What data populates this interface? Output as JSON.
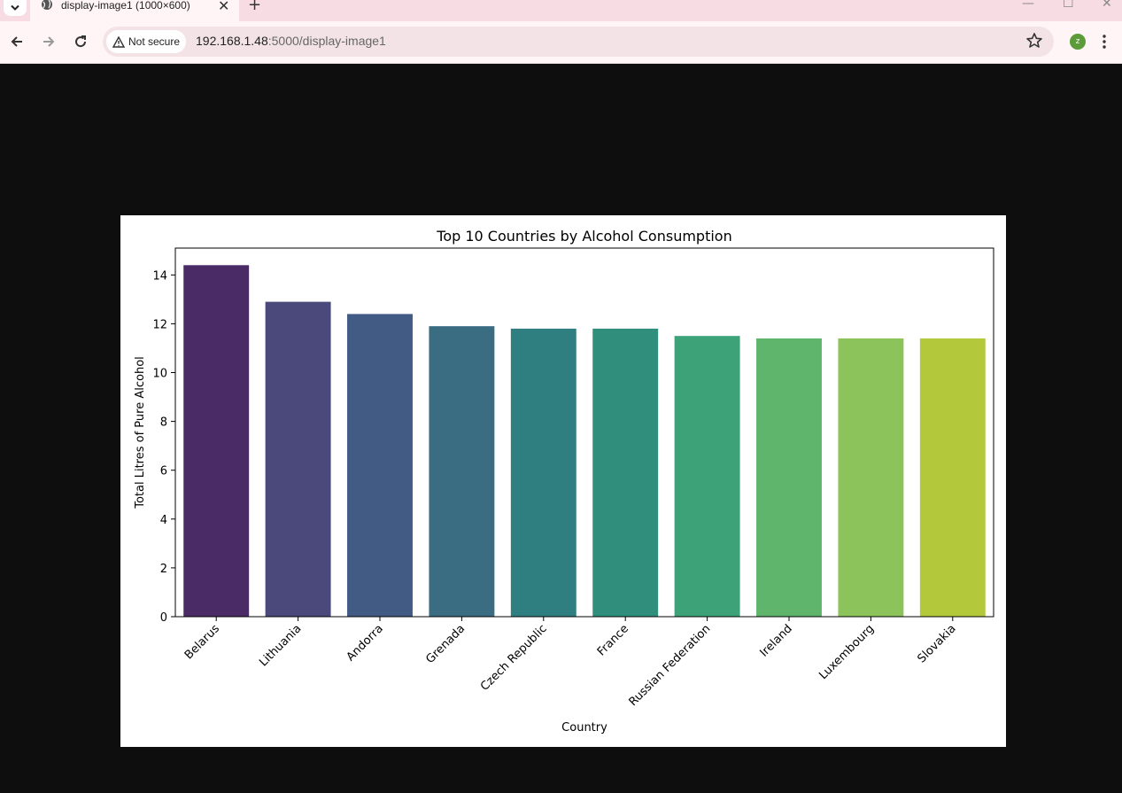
{
  "browser": {
    "tab_title": "display-image1 (1000×600)",
    "security_label": "Not secure",
    "url_host": "192.168.1.48",
    "url_rest": ":5000/display-image1",
    "avatar_initial": "z",
    "colors": {
      "tabstrip": "#f7dde3",
      "toolbar": "#fff5f6",
      "omnibox": "#f3e3e7",
      "avatar": "#5c9b3a",
      "page_bg": "#0e0e0e"
    },
    "icons": [
      "chevron-down-icon",
      "globe-icon",
      "close-icon",
      "plus-icon",
      "minimize-icon",
      "maximize-icon",
      "window-close-icon",
      "back-arrow-icon",
      "forward-arrow-icon",
      "reload-icon",
      "warning-icon",
      "star-icon",
      "more-vert-icon"
    ]
  },
  "chart_data": {
    "type": "bar",
    "title": "Top 10 Countries by Alcohol Consumption",
    "xlabel": "Country",
    "ylabel": "Total Litres of Pure Alcohol",
    "categories": [
      "Belarus",
      "Lithuania",
      "Andorra",
      "Grenada",
      "Czech Republic",
      "France",
      "Russian Federation",
      "Ireland",
      "Luxembourg",
      "Slovakia"
    ],
    "values": [
      14.4,
      12.9,
      12.4,
      11.9,
      11.8,
      11.8,
      11.5,
      11.4,
      11.4,
      11.4
    ],
    "ylim": [
      0,
      15.1
    ],
    "yticks": [
      0,
      2,
      4,
      6,
      8,
      10,
      12,
      14
    ],
    "colors": [
      "#4a2b66",
      "#4b487c",
      "#415b85",
      "#3a6c82",
      "#307f80",
      "#308f7c",
      "#3ea279",
      "#60b56d",
      "#8dc35b",
      "#b4c83b"
    ],
    "grid": false,
    "legend": "none"
  }
}
